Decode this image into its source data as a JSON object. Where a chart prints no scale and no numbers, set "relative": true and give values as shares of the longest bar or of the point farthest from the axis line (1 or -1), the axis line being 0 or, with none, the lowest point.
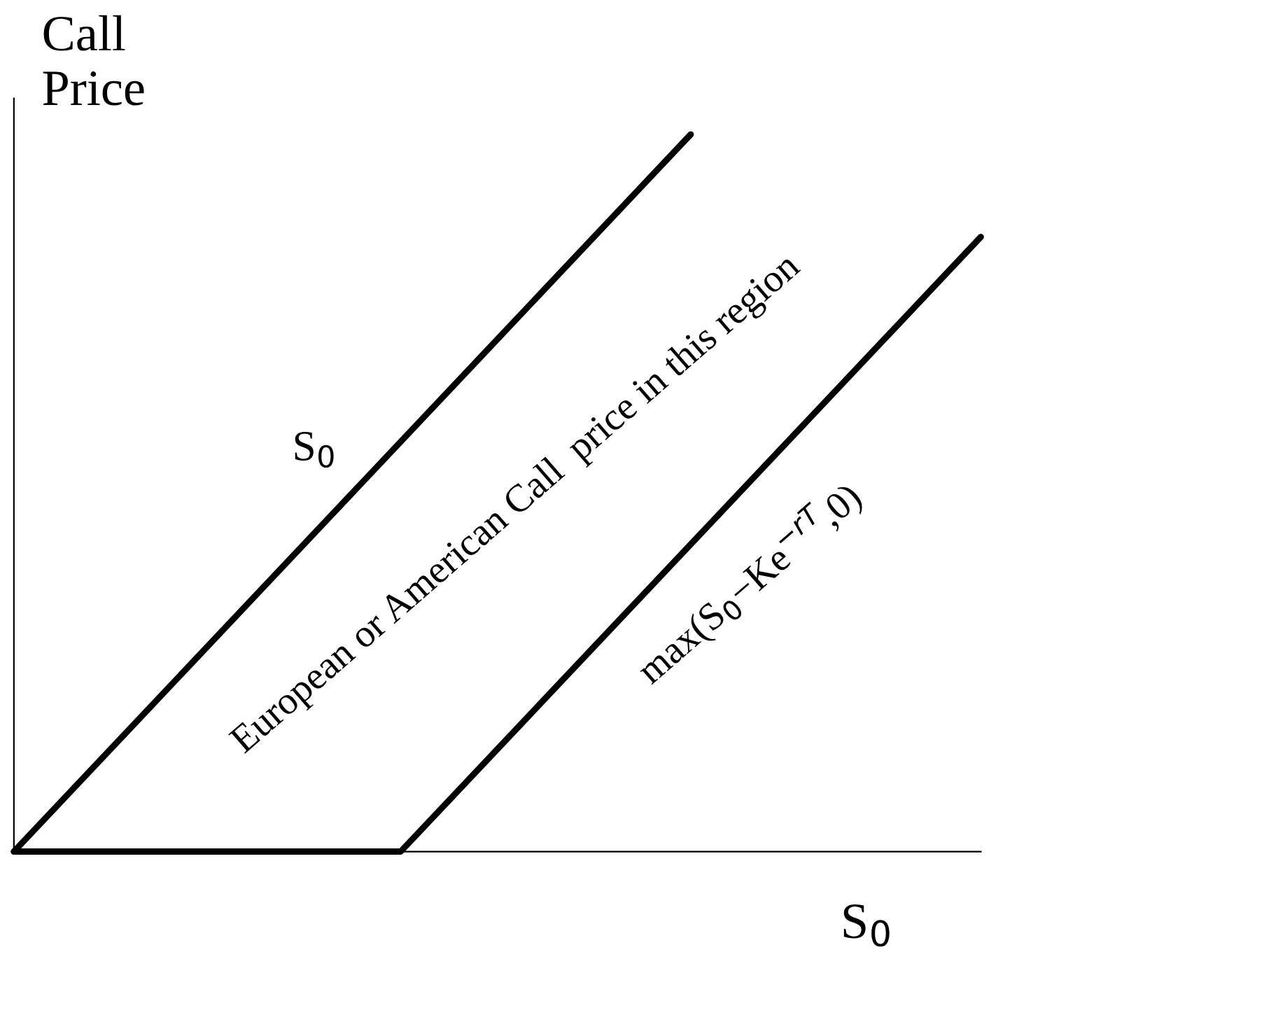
{
  "chart_data": {
    "type": "line",
    "relative": true,
    "ylabel": "Call\nPrice",
    "xlabel": "S$_{0}$",
    "categories": [
      null,
      null,
      null,
      null,
      null,
      null,
      null,
      null,
      null,
      null,
      null
    ],
    "series": [
      {
        "name": "S$_{0}$",
        "color": "#000000",
        "values": [
          0,
          null,
          null,
          null,
          null,
          null,
          null,
          1,
          null,
          null,
          null
        ]
      },
      {
        "name": "max(S$_{0}$−Ke$^{−rT}$,0)",
        "color": "#000000",
        "values": [
          0,
          null,
          null,
          null,
          0,
          null,
          null,
          null,
          null,
          null,
          0.857
        ]
      }
    ],
    "annotations": [
      "European or American Call  price in this region"
    ],
    "legend": false,
    "marker": "none",
    "line_style": "solid"
  }
}
